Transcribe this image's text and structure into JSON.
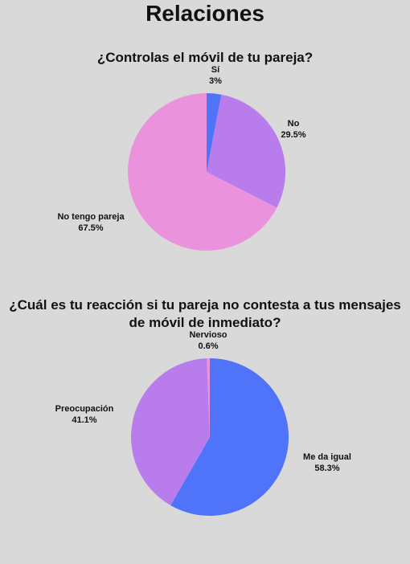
{
  "page": {
    "title": "Relaciones"
  },
  "chart_data": [
    {
      "type": "pie",
      "title": "¿Controlas el móvil de tu pareja?",
      "slices": [
        {
          "label": "Sí",
          "value": 3,
          "value_label": "3%",
          "color": "#4f74f9"
        },
        {
          "label": "No",
          "value": 29.5,
          "value_label": "29.5%",
          "color": "#b87ced"
        },
        {
          "label": "No tengo pareja",
          "value": 67.5,
          "value_label": "67.5%",
          "color": "#ea93dc"
        }
      ],
      "start_angle": "top",
      "direction": "clockwise"
    },
    {
      "type": "pie",
      "title": "¿Cuál es tu reacción si tu pareja no contesta a tus mensajes de móvil de inmediato?",
      "slices": [
        {
          "label": "Me da igual",
          "value": 58.3,
          "value_label": "58.3%",
          "color": "#4f74f9"
        },
        {
          "label": "Preocupación",
          "value": 41.1,
          "value_label": "41.1%",
          "color": "#b87ced"
        },
        {
          "label": "Nervioso",
          "value": 0.6,
          "value_label": "0.6%",
          "color": "#ea93dc"
        }
      ],
      "start_angle": "top",
      "direction": "clockwise"
    }
  ]
}
